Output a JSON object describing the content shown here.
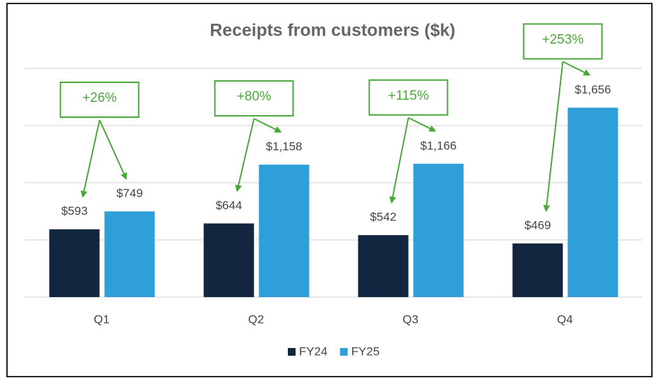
{
  "chart_data": {
    "type": "bar",
    "title": "Receipts from customers ($k)",
    "categories": [
      "Q1",
      "Q2",
      "Q3",
      "Q4"
    ],
    "series": [
      {
        "name": "FY24",
        "color": "#12263f",
        "values": [
          593,
          644,
          542,
          469
        ],
        "value_labels": [
          "$593",
          "$644",
          "$542",
          "$469"
        ]
      },
      {
        "name": "FY25",
        "color": "#2e9fd8",
        "values": [
          749,
          1158,
          1166,
          1656
        ],
        "value_labels": [
          "$749",
          "$1,158",
          "$1,166",
          "$1,656"
        ]
      }
    ],
    "annotations": [
      "+26%",
      "+80%",
      "+115%",
      "+253%"
    ],
    "annotation_color": "#4aa83b",
    "ylim": [
      0,
      2000
    ],
    "yticks": [
      0,
      500,
      1000,
      1500,
      2000
    ],
    "grid": true,
    "legend": "bottom"
  }
}
